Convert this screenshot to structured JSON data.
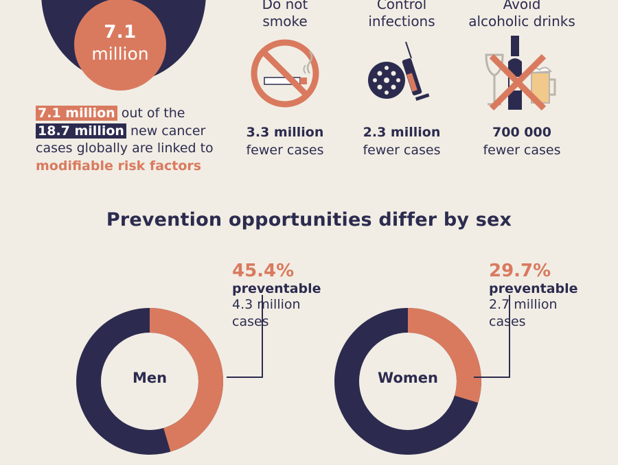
{
  "summary": {
    "circle_value": "7.1",
    "circle_unit": "million",
    "highlight_1": "7.1 million",
    "text_1": " out of the",
    "highlight_2": "18.7 million",
    "text_2": " new cancer cases globally are linked to ",
    "emphasis": "modifiable risk factors"
  },
  "actions": [
    {
      "label_line1": "Do not",
      "label_line2": "smoke",
      "value": "3.3 million",
      "unit": "fewer cases",
      "icon": "no-smoking-icon"
    },
    {
      "label_line1": "Control",
      "label_line2": "infections",
      "value": "2.3 million",
      "unit": "fewer cases",
      "icon": "virus-syringe-icon"
    },
    {
      "label_line1": "Avoid",
      "label_line2": "alcoholic drinks",
      "value": "700 000",
      "unit": "fewer cases",
      "icon": "no-alcohol-icon"
    }
  ],
  "section_title": "Prevention opportunities differ by sex",
  "sexes": [
    {
      "label": "Men",
      "percent": "45.4%",
      "percent_value": 45.4,
      "preventable_label": "preventable",
      "cases_line1": "4.3 million",
      "cases_line2": "cases"
    },
    {
      "label": "Women",
      "percent": "29.7%",
      "percent_value": 29.7,
      "preventable_label": "preventable",
      "cases_line1": "2.7 million",
      "cases_line2": "cases"
    }
  ],
  "colors": {
    "navy": "#2c2b4f",
    "coral": "#d97a5f",
    "background": "#f1ede4"
  }
}
